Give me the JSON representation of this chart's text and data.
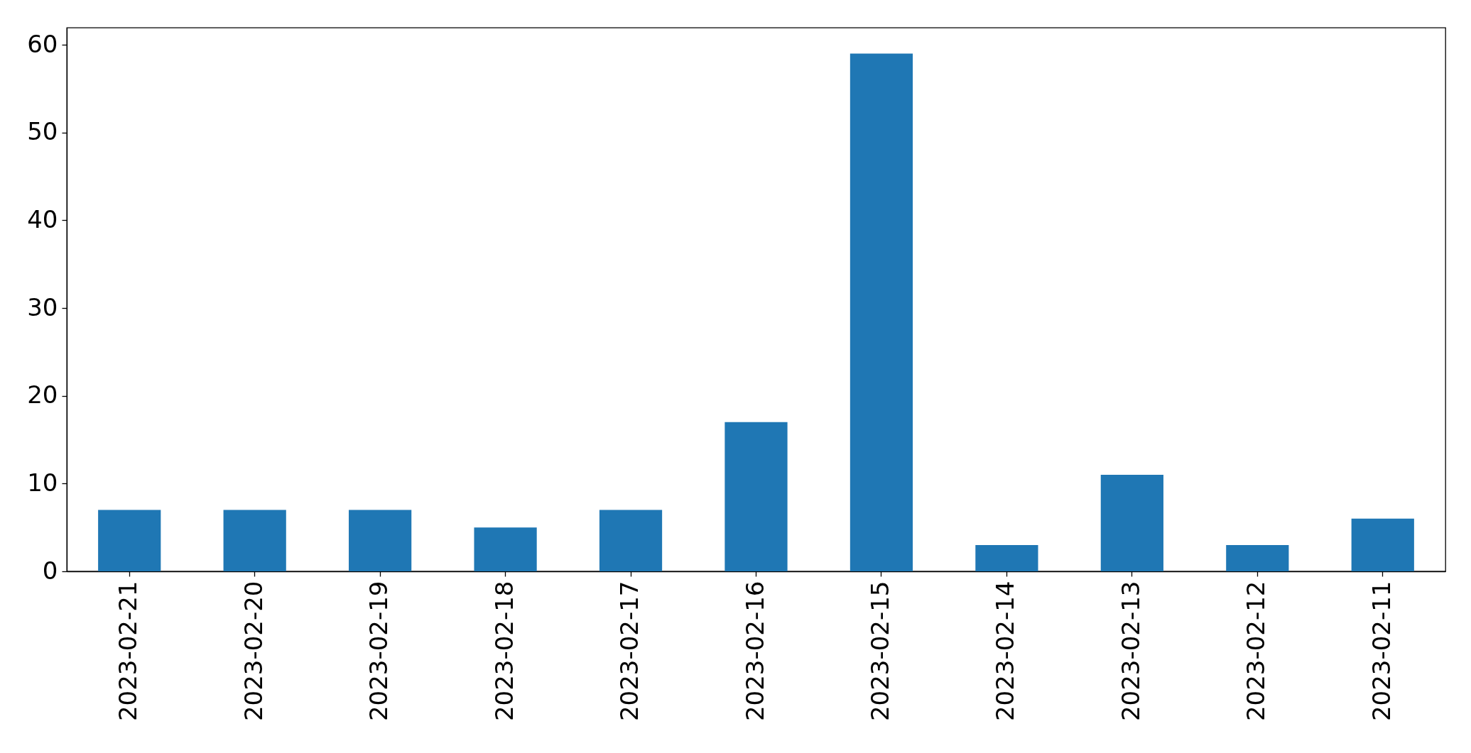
{
  "chart_data": {
    "type": "bar",
    "categories": [
      "2023-02-21",
      "2023-02-20",
      "2023-02-19",
      "2023-02-18",
      "2023-02-17",
      "2023-02-16",
      "2023-02-15",
      "2023-02-14",
      "2023-02-13",
      "2023-02-12",
      "2023-02-11"
    ],
    "values": [
      7,
      7,
      7,
      5,
      7,
      17,
      59,
      3,
      11,
      3,
      6
    ],
    "color": "#1f77b4",
    "ylim": [
      0,
      61.95
    ],
    "yticks": [
      0,
      10,
      20,
      30,
      40,
      50,
      60
    ]
  }
}
